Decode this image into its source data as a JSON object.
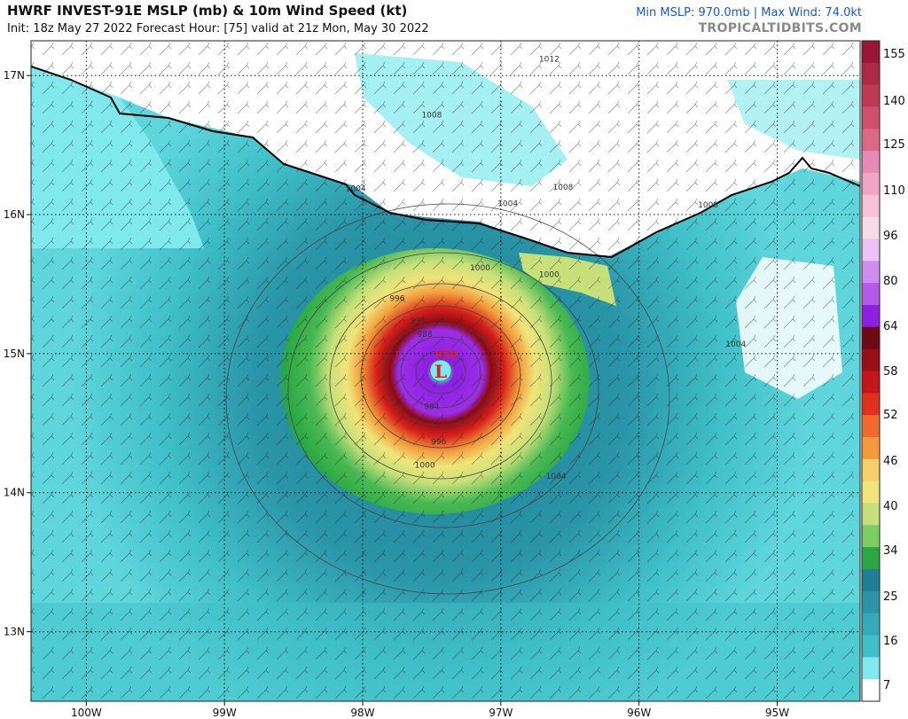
{
  "header": {
    "title": "HWRF INVEST-91E MSLP (mb) & 10m Wind Speed (kt)",
    "subtitle": "Init: 18z May 27 2022   Forecast Hour: [75]   valid at 21z Mon, May 30 2022",
    "stats": "Min MSLP: 970.0mb | Max Wind: 74.0kt",
    "credit": "TROPICALTIDBITS.COM"
  },
  "map": {
    "lon_min": -100.4,
    "lon_max": -94.4,
    "lat_min": 12.5,
    "lat_max": 17.25,
    "lon_ticks": [
      {
        "value": -100,
        "label": "100W"
      },
      {
        "value": -99,
        "label": "99W"
      },
      {
        "value": -98,
        "label": "98W"
      },
      {
        "value": -97,
        "label": "97W"
      },
      {
        "value": -96,
        "label": "96W"
      },
      {
        "value": -95,
        "label": "95W"
      }
    ],
    "lat_ticks": [
      {
        "value": 17,
        "label": "17N"
      },
      {
        "value": 16,
        "label": "16N"
      },
      {
        "value": 15,
        "label": "15N"
      },
      {
        "value": 14,
        "label": "14N"
      },
      {
        "value": 13,
        "label": "13N"
      }
    ],
    "low_center": {
      "lon": -97.55,
      "lat": 14.85,
      "symbol": "L",
      "pressure_label": "970"
    },
    "isobar_labels": [
      {
        "text": "1012",
        "lon": -96.65,
        "lat": 17.1
      },
      {
        "text": "1008",
        "lon": -97.5,
        "lat": 16.7
      },
      {
        "text": "1004",
        "lon": -98.05,
        "lat": 16.17
      },
      {
        "text": "1008",
        "lon": -96.55,
        "lat": 16.18
      },
      {
        "text": "1004",
        "lon": -96.95,
        "lat": 16.06
      },
      {
        "text": "1008",
        "lon": -95.5,
        "lat": 16.05
      },
      {
        "text": "1000",
        "lon": -97.15,
        "lat": 15.6
      },
      {
        "text": "1000",
        "lon": -96.65,
        "lat": 15.55
      },
      {
        "text": "1004",
        "lon": -95.3,
        "lat": 15.05
      },
      {
        "text": "996",
        "lon": -97.75,
        "lat": 15.38
      },
      {
        "text": "992",
        "lon": -97.6,
        "lat": 15.22
      },
      {
        "text": "988",
        "lon": -97.55,
        "lat": 15.12
      },
      {
        "text": "984",
        "lon": -97.5,
        "lat": 14.6
      },
      {
        "text": "996",
        "lon": -97.45,
        "lat": 14.35
      },
      {
        "text": "1000",
        "lon": -97.55,
        "lat": 14.18
      },
      {
        "text": "1004",
        "lon": -96.6,
        "lat": 14.1
      }
    ]
  },
  "colorbar": {
    "labels": [
      "155",
      "140",
      "125",
      "110",
      "96",
      "80",
      "64",
      "58",
      "52",
      "46",
      "40",
      "34",
      "25",
      "16",
      "7"
    ],
    "colors": {
      "cyan_light": "#7fe9ee",
      "teal": "#3fbfc8",
      "teal_dark": "#2a95a8",
      "green": "#2aa843",
      "yellow": "#f0e47a",
      "orange": "#f39a3c",
      "red": "#d6201b",
      "dark_red": "#8b0a14",
      "purple": "#8c1fe0",
      "pink": "#e88ab8",
      "maroon": "#a3203e"
    }
  }
}
